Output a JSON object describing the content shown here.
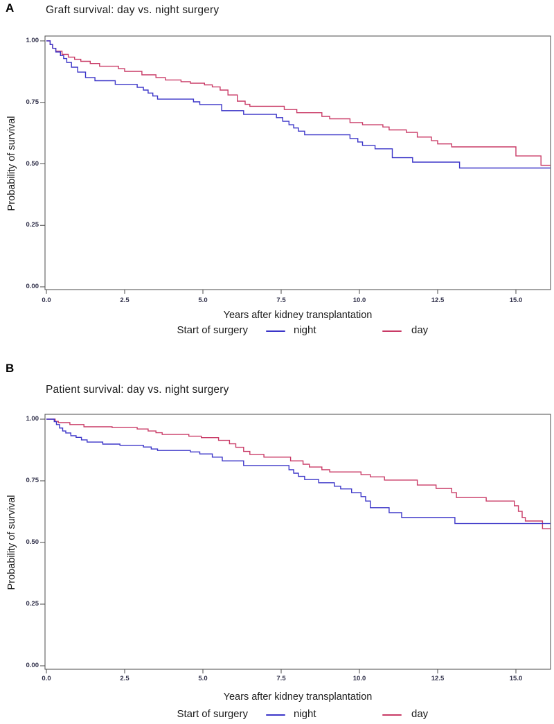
{
  "figure": {
    "panels": [
      {
        "letter": "A",
        "title": "Graft survival: day vs. night surgery",
        "ylabel": "Probability of survival",
        "xlabel": "Years after kidney transplantation",
        "yticklabels": [
          "0.00",
          "0.25",
          "0.50",
          "0.75",
          "1.00"
        ],
        "xticklabels": [
          "0.0",
          "2.5",
          "5.0",
          "7.5",
          "10.0",
          "12.5",
          "15.0"
        ],
        "legend": {
          "title": "Start of surgery",
          "entries": [
            {
              "label": "night"
            },
            {
              "label": "day"
            }
          ]
        }
      },
      {
        "letter": "B",
        "title": "Patient survival: day vs. night surgery",
        "ylabel": "Probability of survival",
        "xlabel": "Years after kidney transplantation",
        "yticklabels": [
          "0.00",
          "0.25",
          "0.50",
          "0.75",
          "1.00"
        ],
        "xticklabels": [
          "0.0",
          "2.5",
          "5.0",
          "7.5",
          "10.0",
          "12.5",
          "15.0"
        ],
        "legend": {
          "title": "Start of surgery",
          "entries": [
            {
              "label": "night"
            },
            {
              "label": "day"
            }
          ]
        }
      }
    ]
  },
  "chart_data": [
    {
      "type": "line",
      "step": true,
      "title": "Graft survival: day vs. night surgery",
      "xlabel": "Years after kidney transplantation",
      "ylabel": "Probability of survival",
      "xlim": [
        0,
        16.1
      ],
      "ylim": [
        0,
        1
      ],
      "xticks": [
        0,
        2.5,
        5,
        7.5,
        10,
        12.5,
        15
      ],
      "yticks": [
        0,
        0.25,
        0.5,
        0.75,
        1
      ],
      "grid": false,
      "legend_position": "bottom",
      "legend_title": "Start of surgery",
      "series": [
        {
          "name": "night",
          "color": "#3b35c8",
          "points": [
            [
              0,
              1.0
            ],
            [
              0.12,
              0.985
            ],
            [
              0.2,
              0.97
            ],
            [
              0.3,
              0.955
            ],
            [
              0.45,
              0.94
            ],
            [
              0.55,
              0.928
            ],
            [
              0.65,
              0.912
            ],
            [
              0.8,
              0.893
            ],
            [
              1.0,
              0.873
            ],
            [
              1.25,
              0.851
            ],
            [
              1.55,
              0.838
            ],
            [
              2.2,
              0.823
            ],
            [
              2.9,
              0.811
            ],
            [
              3.1,
              0.8
            ],
            [
              3.25,
              0.788
            ],
            [
              3.4,
              0.776
            ],
            [
              3.55,
              0.763
            ],
            [
              4.7,
              0.752
            ],
            [
              4.9,
              0.741
            ],
            [
              5.6,
              0.716
            ],
            [
              6.3,
              0.701
            ],
            [
              7.35,
              0.688
            ],
            [
              7.55,
              0.673
            ],
            [
              7.75,
              0.659
            ],
            [
              7.9,
              0.646
            ],
            [
              8.05,
              0.633
            ],
            [
              8.25,
              0.618
            ],
            [
              9.7,
              0.603
            ],
            [
              9.95,
              0.589
            ],
            [
              10.1,
              0.575
            ],
            [
              10.5,
              0.561
            ],
            [
              11.05,
              0.525
            ],
            [
              11.7,
              0.507
            ],
            [
              13.2,
              0.483
            ]
          ]
        },
        {
          "name": "day",
          "color": "#c93a66",
          "points": [
            [
              0,
              1.0
            ],
            [
              0.12,
              0.985
            ],
            [
              0.2,
              0.97
            ],
            [
              0.3,
              0.958
            ],
            [
              0.5,
              0.945
            ],
            [
              0.7,
              0.934
            ],
            [
              0.9,
              0.925
            ],
            [
              1.1,
              0.917
            ],
            [
              1.4,
              0.908
            ],
            [
              1.7,
              0.897
            ],
            [
              2.3,
              0.887
            ],
            [
              2.5,
              0.876
            ],
            [
              3.05,
              0.862
            ],
            [
              3.5,
              0.851
            ],
            [
              3.8,
              0.841
            ],
            [
              4.3,
              0.834
            ],
            [
              4.6,
              0.828
            ],
            [
              5.05,
              0.821
            ],
            [
              5.3,
              0.813
            ],
            [
              5.55,
              0.8
            ],
            [
              5.8,
              0.78
            ],
            [
              6.1,
              0.755
            ],
            [
              6.35,
              0.742
            ],
            [
              6.5,
              0.734
            ],
            [
              7.6,
              0.721
            ],
            [
              8.0,
              0.708
            ],
            [
              8.8,
              0.693
            ],
            [
              9.05,
              0.683
            ],
            [
              9.7,
              0.668
            ],
            [
              10.1,
              0.659
            ],
            [
              10.75,
              0.65
            ],
            [
              10.95,
              0.638
            ],
            [
              11.5,
              0.628
            ],
            [
              11.85,
              0.609
            ],
            [
              12.3,
              0.594
            ],
            [
              12.5,
              0.581
            ],
            [
              12.95,
              0.569
            ],
            [
              15.0,
              0.532
            ],
            [
              15.8,
              0.494
            ]
          ]
        }
      ]
    },
    {
      "type": "line",
      "step": true,
      "title": "Patient survival: day vs. night surgery",
      "xlabel": "Years after kidney transplantation",
      "ylabel": "Probability of survival",
      "xlim": [
        0,
        16.1
      ],
      "ylim": [
        0,
        1
      ],
      "xticks": [
        0,
        2.5,
        5,
        7.5,
        10,
        12.5,
        15
      ],
      "yticks": [
        0,
        0.25,
        0.5,
        0.75,
        1
      ],
      "grid": false,
      "legend_position": "bottom",
      "legend_title": "Start of surgery",
      "series": [
        {
          "name": "night",
          "color": "#3b35c8",
          "points": [
            [
              0,
              1.0
            ],
            [
              0.25,
              0.99
            ],
            [
              0.32,
              0.978
            ],
            [
              0.42,
              0.964
            ],
            [
              0.52,
              0.952
            ],
            [
              0.62,
              0.944
            ],
            [
              0.78,
              0.933
            ],
            [
              0.95,
              0.926
            ],
            [
              1.12,
              0.916
            ],
            [
              1.3,
              0.907
            ],
            [
              1.8,
              0.899
            ],
            [
              2.35,
              0.894
            ],
            [
              3.1,
              0.887
            ],
            [
              3.35,
              0.879
            ],
            [
              3.55,
              0.873
            ],
            [
              4.6,
              0.867
            ],
            [
              4.9,
              0.859
            ],
            [
              5.3,
              0.846
            ],
            [
              5.62,
              0.831
            ],
            [
              6.3,
              0.812
            ],
            [
              7.75,
              0.795
            ],
            [
              7.9,
              0.781
            ],
            [
              8.05,
              0.768
            ],
            [
              8.25,
              0.755
            ],
            [
              8.7,
              0.742
            ],
            [
              9.2,
              0.728
            ],
            [
              9.4,
              0.717
            ],
            [
              9.75,
              0.702
            ],
            [
              10.05,
              0.686
            ],
            [
              10.2,
              0.668
            ],
            [
              10.35,
              0.641
            ],
            [
              10.95,
              0.621
            ],
            [
              11.35,
              0.601
            ],
            [
              13.05,
              0.577
            ]
          ]
        },
        {
          "name": "day",
          "color": "#c93a66",
          "points": [
            [
              0,
              1.0
            ],
            [
              0.28,
              0.991
            ],
            [
              0.38,
              0.986
            ],
            [
              0.75,
              0.978
            ],
            [
              1.2,
              0.969
            ],
            [
              2.1,
              0.966
            ],
            [
              2.9,
              0.96
            ],
            [
              3.25,
              0.952
            ],
            [
              3.5,
              0.945
            ],
            [
              3.7,
              0.938
            ],
            [
              4.55,
              0.931
            ],
            [
              4.95,
              0.925
            ],
            [
              5.5,
              0.914
            ],
            [
              5.85,
              0.9
            ],
            [
              6.05,
              0.886
            ],
            [
              6.3,
              0.869
            ],
            [
              6.5,
              0.857
            ],
            [
              6.95,
              0.846
            ],
            [
              7.8,
              0.831
            ],
            [
              8.2,
              0.817
            ],
            [
              8.4,
              0.806
            ],
            [
              8.8,
              0.795
            ],
            [
              9.05,
              0.786
            ],
            [
              10.05,
              0.775
            ],
            [
              10.35,
              0.766
            ],
            [
              10.8,
              0.753
            ],
            [
              11.85,
              0.733
            ],
            [
              12.45,
              0.719
            ],
            [
              12.95,
              0.702
            ],
            [
              13.1,
              0.682
            ],
            [
              14.05,
              0.668
            ],
            [
              14.95,
              0.649
            ],
            [
              15.08,
              0.626
            ],
            [
              15.2,
              0.601
            ],
            [
              15.3,
              0.587
            ],
            [
              15.85,
              0.556
            ]
          ]
        }
      ]
    }
  ]
}
